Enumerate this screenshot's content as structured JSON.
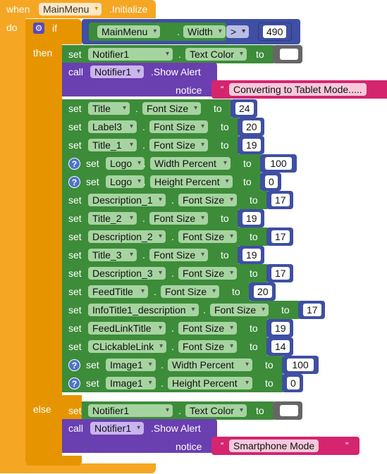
{
  "event": {
    "when": "when",
    "component": "MainMenu",
    "event_name": ".Initialize",
    "do": "do"
  },
  "if_block": {
    "if_label": "if",
    "then_label": "then",
    "else_label": "else",
    "condition": {
      "component": "MainMenu",
      "property": "Width",
      "operator": ">",
      "value": "490"
    }
  },
  "then_statements": [
    {
      "kind": "set",
      "set_label": "set",
      "component": "Notifier1",
      "property": "Text Color",
      "to_label": "to",
      "value_type": "color",
      "value": ""
    },
    {
      "kind": "call",
      "call_label": "call",
      "component": "Notifier1",
      "method": ".Show Alert",
      "arg_label": "notice",
      "value": "Converting to Tablet Mode....."
    },
    {
      "kind": "set",
      "set_label": "set",
      "component": "Title",
      "property": "Font Size",
      "to_label": "to",
      "value": "24"
    },
    {
      "kind": "set",
      "set_label": "set",
      "component": "Label3",
      "property": "Font Size",
      "to_label": "to",
      "value": "20"
    },
    {
      "kind": "set",
      "set_label": "set",
      "component": "Title_1",
      "property": "Font Size",
      "to_label": "to",
      "value": "19"
    },
    {
      "kind": "set",
      "set_label": "set",
      "component": "Logo",
      "property": "Width Percent",
      "to_label": "to",
      "value": "100",
      "help_icon": "?"
    },
    {
      "kind": "set",
      "set_label": "set",
      "component": "Logo",
      "property": "Height Percent",
      "to_label": "to",
      "value": "0",
      "help_icon": "?"
    },
    {
      "kind": "set",
      "set_label": "set",
      "component": "Description_1",
      "property": "Font Size",
      "to_label": "to",
      "value": "17"
    },
    {
      "kind": "set",
      "set_label": "set",
      "component": "Title_2",
      "property": "Font Size",
      "to_label": "to",
      "value": "19"
    },
    {
      "kind": "set",
      "set_label": "set",
      "component": "Description_2",
      "property": "Font Size",
      "to_label": "to",
      "value": "17"
    },
    {
      "kind": "set",
      "set_label": "set",
      "component": "Title_3",
      "property": "Font Size",
      "to_label": "to",
      "value": "19"
    },
    {
      "kind": "set",
      "set_label": "set",
      "component": "Description_3",
      "property": "Font Size",
      "to_label": "to",
      "value": "17"
    },
    {
      "kind": "set",
      "set_label": "set",
      "component": "FeedTitle",
      "property": "Font Size",
      "to_label": "to",
      "value": "20"
    },
    {
      "kind": "set",
      "set_label": "set",
      "component": "InfoTitle1_description",
      "property": "Font Size",
      "to_label": "to",
      "value": "17"
    },
    {
      "kind": "set",
      "set_label": "set",
      "component": "FeedLinkTitle",
      "property": "Font Size",
      "to_label": "to",
      "value": "19"
    },
    {
      "kind": "set",
      "set_label": "set",
      "component": "CLickableLink",
      "property": "Font Size",
      "to_label": "to",
      "value": "14"
    },
    {
      "kind": "set",
      "set_label": "set",
      "component": "Image1",
      "property": "Width Percent",
      "to_label": "to",
      "value": "100",
      "help_icon": "?"
    },
    {
      "kind": "set",
      "set_label": "set",
      "component": "Image1",
      "property": "Height Percent",
      "to_label": "to",
      "value": "0",
      "help_icon": "?"
    }
  ],
  "else_statements": [
    {
      "kind": "set",
      "set_label": "set",
      "component": "Notifier1",
      "property": "Text Color",
      "to_label": "to",
      "value_type": "color",
      "value": ""
    },
    {
      "kind": "call",
      "call_label": "call",
      "component": "Notifier1",
      "method": ".Show Alert",
      "arg_label": "notice",
      "value": "Smartphone Mode"
    }
  ],
  "colors": {
    "event": "#f5a623",
    "control": "#e69500",
    "set_block": "#3d8c3a",
    "call_block": "#6a3fb0",
    "math_block": "#3f4fa2",
    "text_block": "#d4256e",
    "color_block": "#666666"
  }
}
